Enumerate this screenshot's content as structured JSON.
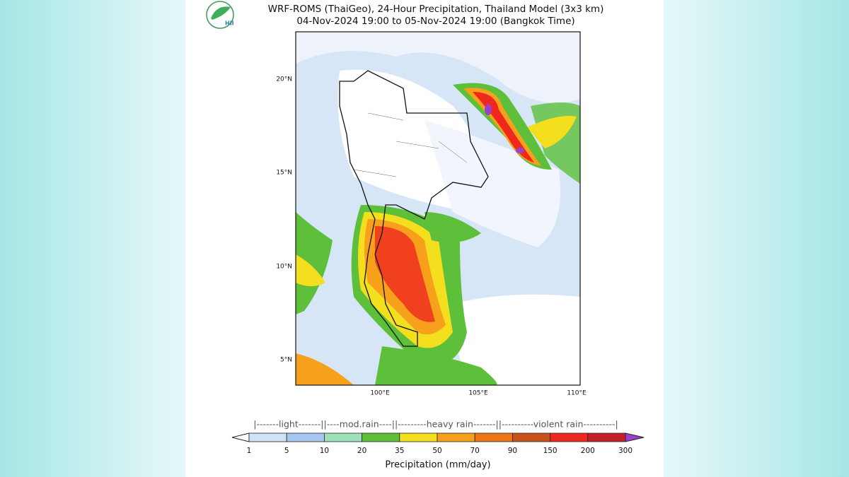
{
  "header": {
    "title": "WRF-ROMS (ThaiGeo), 24-Hour Precipitation, Thailand Model (3x3 km)",
    "subtitle": "04-Nov-2024 19:00 to 05-Nov-2024 19:00 (Bangkok Time)",
    "logo_text": "HII"
  },
  "map": {
    "lat_labels": [
      "20°N",
      "15°N",
      "10°N",
      "5°N"
    ],
    "lon_labels": [
      "100°E",
      "105°E",
      "110°E"
    ]
  },
  "colorbar": {
    "class_labels": "|-------light-------||----mod.rain----||---------heavy rain-------||----------violent rain----------|",
    "ticks": [
      1,
      5,
      10,
      20,
      35,
      50,
      70,
      90,
      150,
      200,
      300
    ],
    "colors": [
      "#cfe2f6",
      "#a6c6ef",
      "#9fe0b9",
      "#5dbf3a",
      "#f4df1e",
      "#f7a01c",
      "#ee7619",
      "#c8521b",
      "#ef281f",
      "#c41f2a",
      "#8a1d1f"
    ],
    "under_color": "#ffffff",
    "over_color": "#9b40c9",
    "label": "Precipitation (mm/day)"
  }
}
